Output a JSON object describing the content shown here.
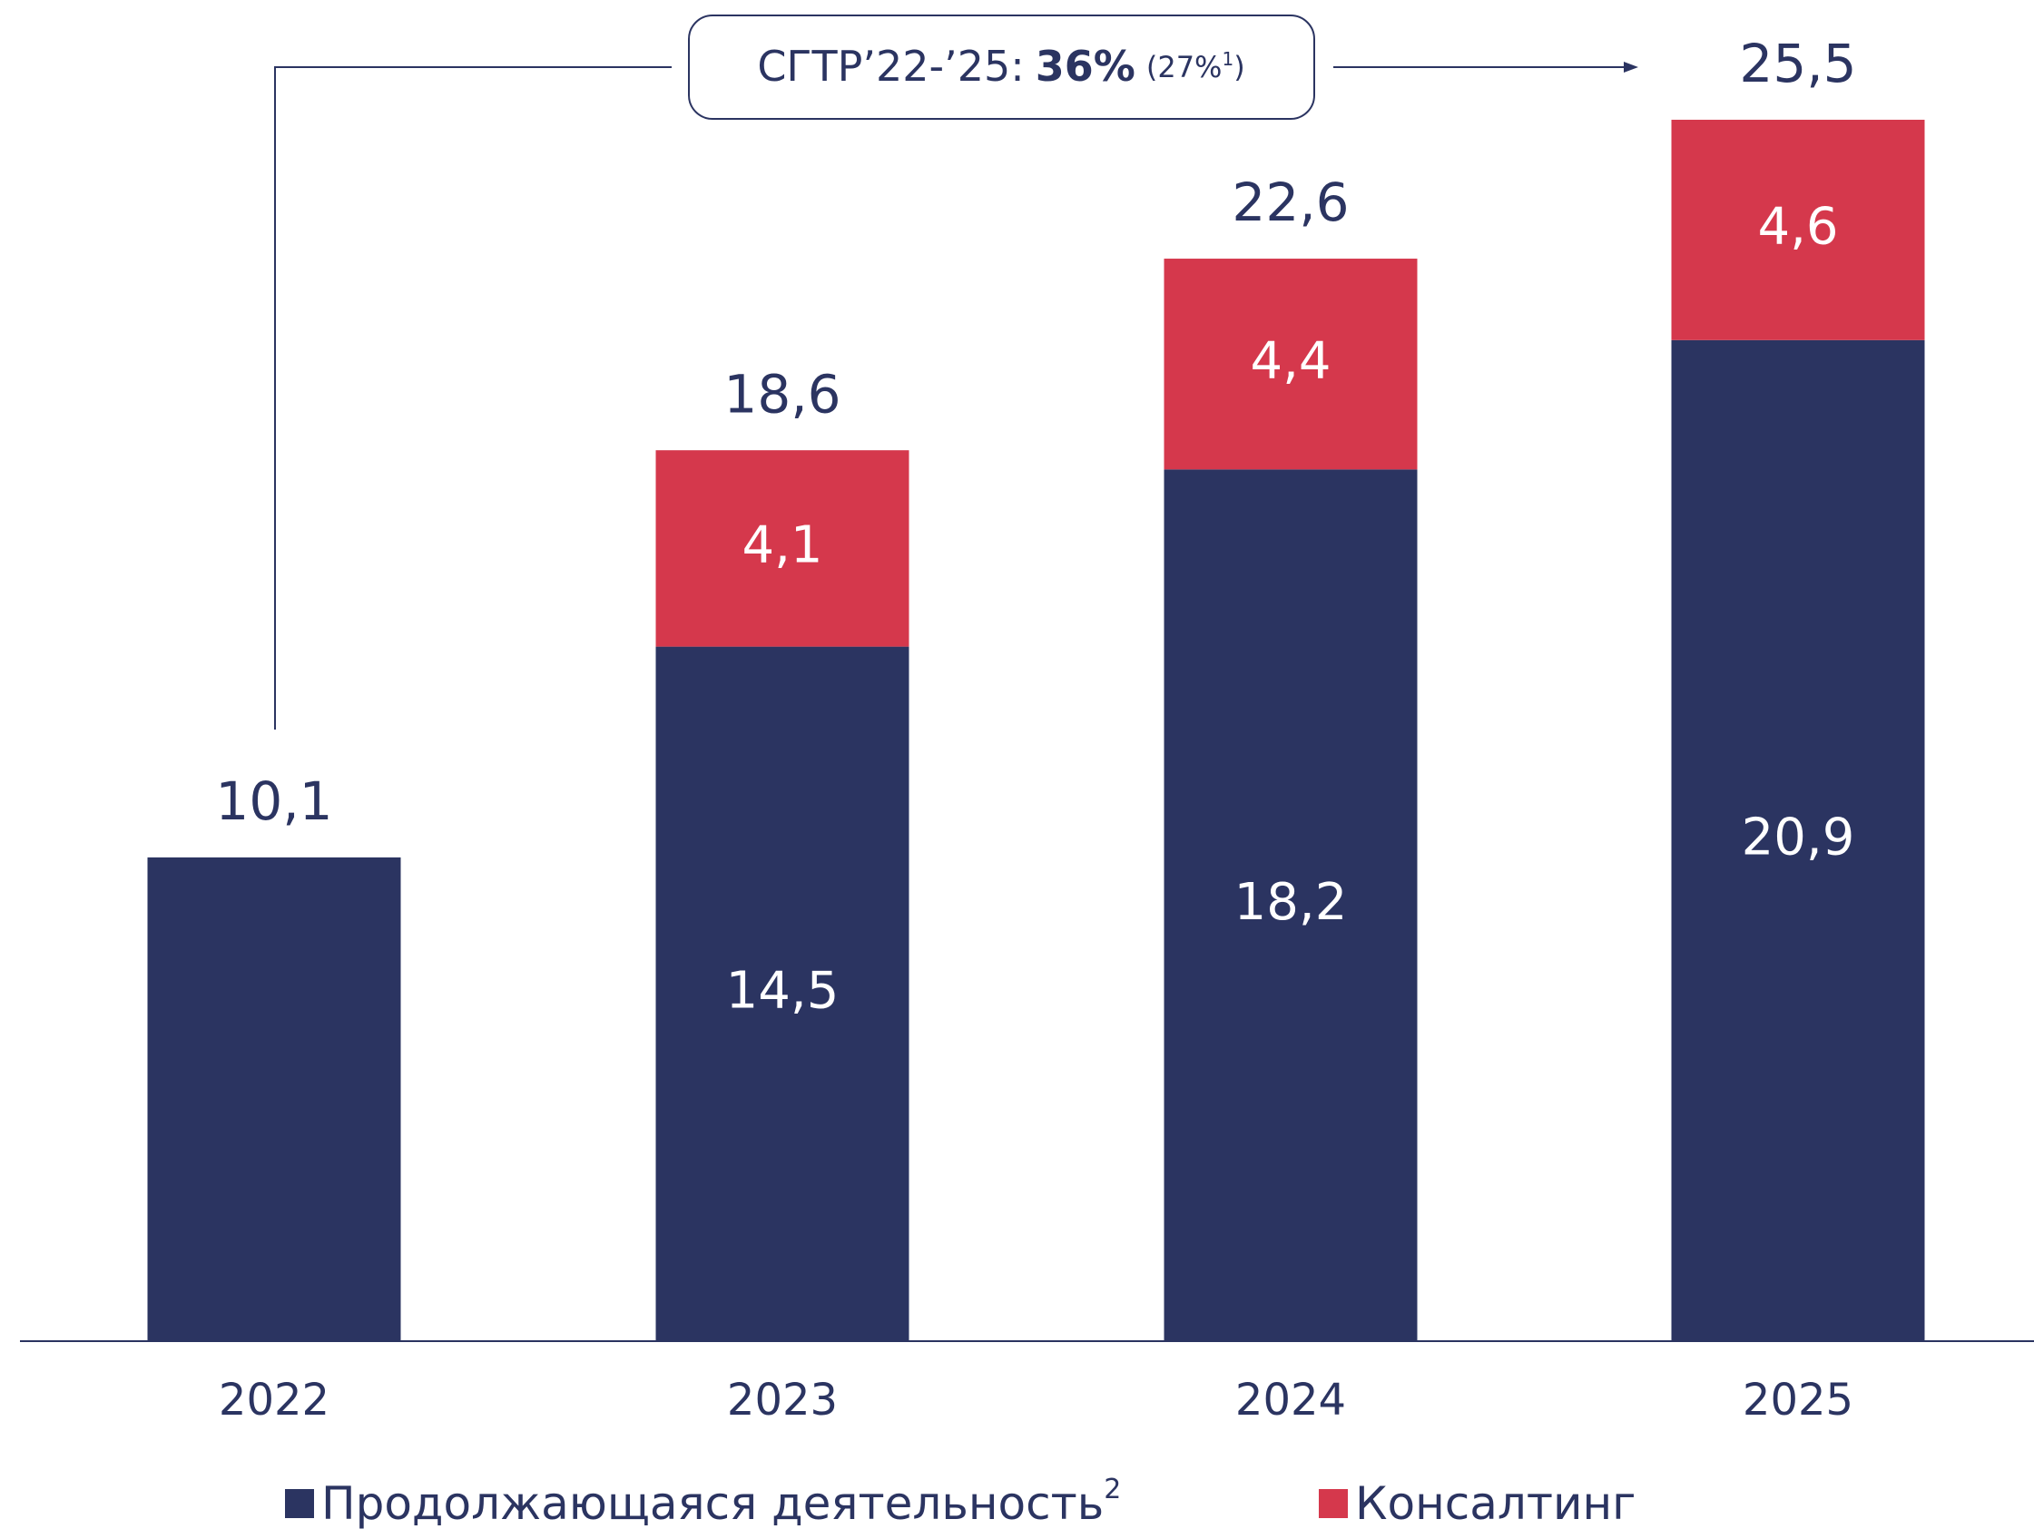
{
  "chart_data": {
    "type": "stacked_bar",
    "categories": [
      "2022",
      "2023",
      "2024",
      "2025"
    ],
    "series": [
      {
        "name": "Продолжающаяся деятельность",
        "name_superscript": "2",
        "color": "#2b3461",
        "values": [
          10.1,
          14.5,
          18.2,
          20.9
        ],
        "value_labels": [
          null,
          "14,5",
          "18,2",
          "20,9"
        ]
      },
      {
        "name": "Консалтинг",
        "color": "#d5384c",
        "values": [
          null,
          4.1,
          4.4,
          4.6
        ],
        "value_labels": [
          null,
          "4,1",
          "4,4",
          "4,6"
        ]
      }
    ],
    "totals": [
      10.1,
      18.6,
      22.6,
      25.5
    ],
    "total_labels": [
      "10,1",
      "18,6",
      "22,6",
      "25,5"
    ],
    "annotation": {
      "label": "СГТР’22-’25:",
      "value": "36%",
      "note": "(27%",
      "note_sup": "1",
      "note_end": ")"
    },
    "ylim": [
      0,
      28
    ]
  }
}
